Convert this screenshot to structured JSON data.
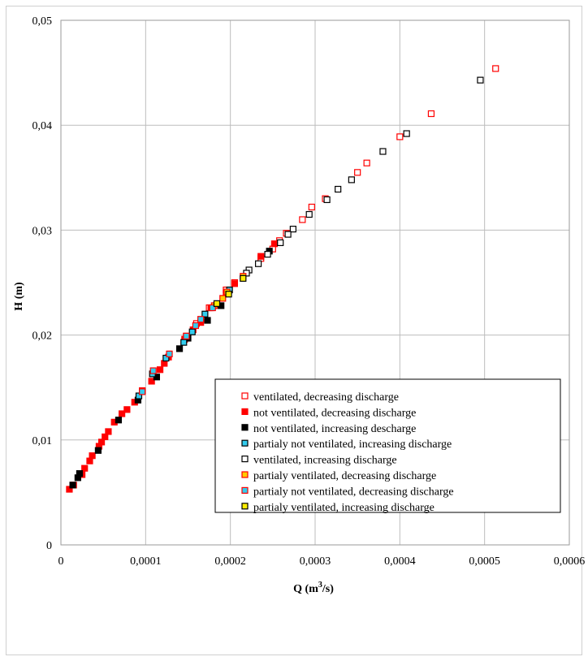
{
  "chart_data": {
    "type": "scatter",
    "title": "",
    "xlabel": "Q (m",
    "xlabel_sup": "3",
    "xlabel_suffix": "/s)",
    "ylabel": "H (m)",
    "xlim": [
      0,
      0.0006
    ],
    "ylim": [
      0,
      0.05
    ],
    "grid": true,
    "legend_position": "bottom-right",
    "xticks": [
      "0",
      "0,0001",
      "0,0002",
      "0,0003",
      "0,0004",
      "0,0005",
      "0,0006"
    ],
    "yticks": [
      "0",
      "0,01",
      "0,02",
      "0,03",
      "0,04",
      "0,05"
    ],
    "series": [
      {
        "name": "ventilated, decreasing discharge",
        "fill": "#ffffff",
        "stroke": "#ff0000",
        "points": [
          [
            0.000513,
            0.0454
          ],
          [
            0.000437,
            0.0411
          ],
          [
            0.0004,
            0.0389
          ],
          [
            0.000361,
            0.0364
          ],
          [
            0.00035,
            0.0355
          ],
          [
            0.000312,
            0.033
          ],
          [
            0.000296,
            0.0322
          ],
          [
            0.000285,
            0.031
          ],
          [
            0.000266,
            0.0297
          ],
          [
            0.000258,
            0.029
          ],
          [
            0.00025,
            0.0282
          ],
          [
            0.000236,
            0.0273
          ],
          [
            0.000205,
            0.025
          ],
          [
            0.000195,
            0.0243
          ],
          [
            0.000175,
            0.0226
          ],
          [
            0.00016,
            0.0211
          ],
          [
            0.000148,
            0.0199
          ]
        ]
      },
      {
        "name": "not ventilated, decreasing discharge",
        "fill": "#ff0000",
        "stroke": "#ff0000",
        "points": [
          [
            1e-05,
            0.0053
          ],
          [
            1.5e-05,
            0.0057
          ],
          [
            2.5e-05,
            0.0067
          ],
          [
            2.8e-05,
            0.0073
          ],
          [
            3.4e-05,
            0.008
          ],
          [
            3.7e-05,
            0.0085
          ],
          [
            4.5e-05,
            0.0094
          ],
          [
            4.8e-05,
            0.0098
          ],
          [
            5.2e-05,
            0.0103
          ],
          [
            5.6e-05,
            0.0108
          ],
          [
            6.3e-05,
            0.0117
          ],
          [
            7.2e-05,
            0.0125
          ],
          [
            7.8e-05,
            0.0129
          ],
          [
            8.7e-05,
            0.0136
          ],
          [
            9.6e-05,
            0.0147
          ],
          [
            0.000107,
            0.0156
          ],
          [
            0.000117,
            0.0167
          ],
          [
            0.000122,
            0.0173
          ],
          [
            0.000127,
            0.0179
          ],
          [
            0.000146,
            0.0196
          ],
          [
            0.000156,
            0.0205
          ],
          [
            0.000165,
            0.0212
          ],
          [
            0.000177,
            0.0226
          ],
          [
            0.000195,
            0.024
          ],
          [
            0.000205,
            0.0249
          ],
          [
            0.000236,
            0.0275
          ],
          [
            0.000252,
            0.0287
          ]
        ]
      },
      {
        "name": "not ventilated, increasing descharge",
        "fill": "#000000",
        "stroke": "#000000",
        "points": [
          [
            1.4e-05,
            0.0057
          ],
          [
            2e-05,
            0.0064
          ],
          [
            2.2e-05,
            0.0068
          ],
          [
            4.4e-05,
            0.009
          ],
          [
            6.8e-05,
            0.0119
          ],
          [
            9.1e-05,
            0.0138
          ],
          [
            0.000113,
            0.016
          ],
          [
            0.00014,
            0.0187
          ],
          [
            0.00015,
            0.0197
          ],
          [
            0.000173,
            0.0214
          ],
          [
            0.000189,
            0.0228
          ],
          [
            0.000246,
            0.028
          ]
        ]
      },
      {
        "name": "partialy not ventilated, increasing discharge",
        "fill": "#33ccee",
        "stroke": "#000000",
        "points": [
          [
            9.2e-05,
            0.0142
          ],
          [
            0.000108,
            0.0163
          ],
          [
            0.000124,
            0.0178
          ],
          [
            0.000145,
            0.0193
          ],
          [
            0.000155,
            0.0203
          ],
          [
            0.00017,
            0.022
          ],
          [
            0.000199,
            0.0243
          ]
        ]
      },
      {
        "name": "ventilated, increasing discharge",
        "fill": "#ffffff",
        "stroke": "#000000",
        "points": [
          [
            0.000495,
            0.0443
          ],
          [
            0.000408,
            0.0392
          ],
          [
            0.00038,
            0.0375
          ],
          [
            0.000343,
            0.0348
          ],
          [
            0.000327,
            0.0339
          ],
          [
            0.000314,
            0.0329
          ],
          [
            0.000293,
            0.0315
          ],
          [
            0.000274,
            0.0301
          ],
          [
            0.000268,
            0.0296
          ],
          [
            0.000259,
            0.0288
          ],
          [
            0.000244,
            0.0277
          ],
          [
            0.000233,
            0.0268
          ],
          [
            0.000222,
            0.0262
          ],
          [
            0.000219,
            0.0259
          ]
        ]
      },
      {
        "name": "partialy ventilated, decreasing discharge",
        "fill": "#ffcc00",
        "stroke": "#ff0000",
        "points": [
          [
            0.000191,
            0.0235
          ],
          [
            0.000181,
            0.0228
          ],
          [
            0.000196,
            0.0241
          ],
          [
            0.000215,
            0.0256
          ]
        ]
      },
      {
        "name": "partialy not ventilated, decreasing discharge",
        "fill": "#33ccee",
        "stroke": "#ff0000",
        "points": [
          [
            9.6e-05,
            0.0146
          ],
          [
            0.000109,
            0.0166
          ],
          [
            0.000128,
            0.0182
          ],
          [
            0.000148,
            0.0199
          ],
          [
            0.000159,
            0.0209
          ],
          [
            0.000165,
            0.0215
          ],
          [
            0.000179,
            0.0226
          ]
        ]
      },
      {
        "name": "partialy ventilated, increasing discharge",
        "fill": "#ffee00",
        "stroke": "#000000",
        "points": [
          [
            0.000184,
            0.023
          ],
          [
            0.000198,
            0.0239
          ],
          [
            0.000215,
            0.0254
          ]
        ]
      }
    ]
  }
}
